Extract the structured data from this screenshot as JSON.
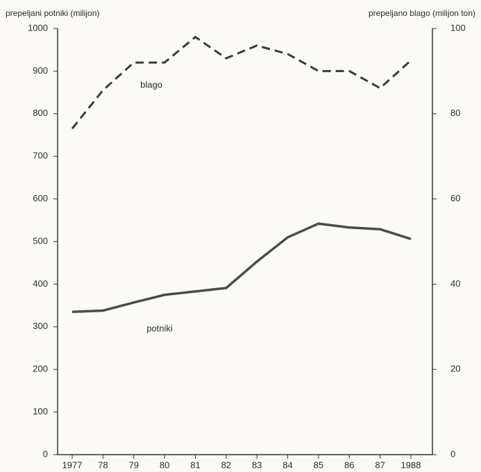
{
  "chart_data": {
    "type": "line",
    "y_label": "prepeljani potniki (milijon)",
    "y2_label": "prepeljano blago (milijon ton)",
    "categories": [
      "1977",
      "78",
      "79",
      "80",
      "81",
      "82",
      "83",
      "84",
      "85",
      "86",
      "87",
      "1988"
    ],
    "series": [
      {
        "name": "blago",
        "color": "#3a3a3a",
        "dashed": true,
        "axis": "y2",
        "values": [
          76.5,
          85.5,
          92,
          92,
          98,
          93,
          96,
          94,
          90,
          90,
          86,
          92.5
        ]
      },
      {
        "name": "potniki",
        "color": "#4a4a4a",
        "dashed": false,
        "values": [
          335,
          338,
          357,
          375,
          383,
          391,
          453,
          510,
          542,
          533,
          529,
          506
        ]
      }
    ],
    "ylim": [
      0,
      1000
    ],
    "yticks": [
      0,
      100,
      200,
      300,
      400,
      500,
      600,
      700,
      800,
      900,
      1000
    ],
    "y2lim": [
      0,
      100
    ],
    "y2ticks": [
      0,
      20,
      40,
      60,
      80,
      100
    ],
    "grid": false
  }
}
